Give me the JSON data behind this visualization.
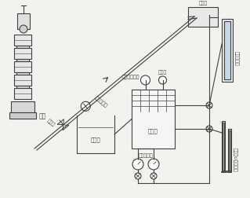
{
  "bg_color": "#f2f2ee",
  "line_color": "#404040",
  "labels": {
    "pump": "水泵",
    "suction_tank": "吸水箱",
    "drain_tank": "放水箱",
    "pressure_gauge": "精密压力表",
    "hydrant_orifice": "消火栓＋孔板",
    "pressure_hole": "测压孔",
    "pressure_tank": "稳压箱",
    "solenoid": "电磁流量计",
    "control_valve": "调节阀",
    "water_column_tube": "水柱测压管",
    "u_tube": "水银柱U型测压管"
  },
  "figsize": [
    3.19,
    2.53
  ],
  "dpi": 100
}
